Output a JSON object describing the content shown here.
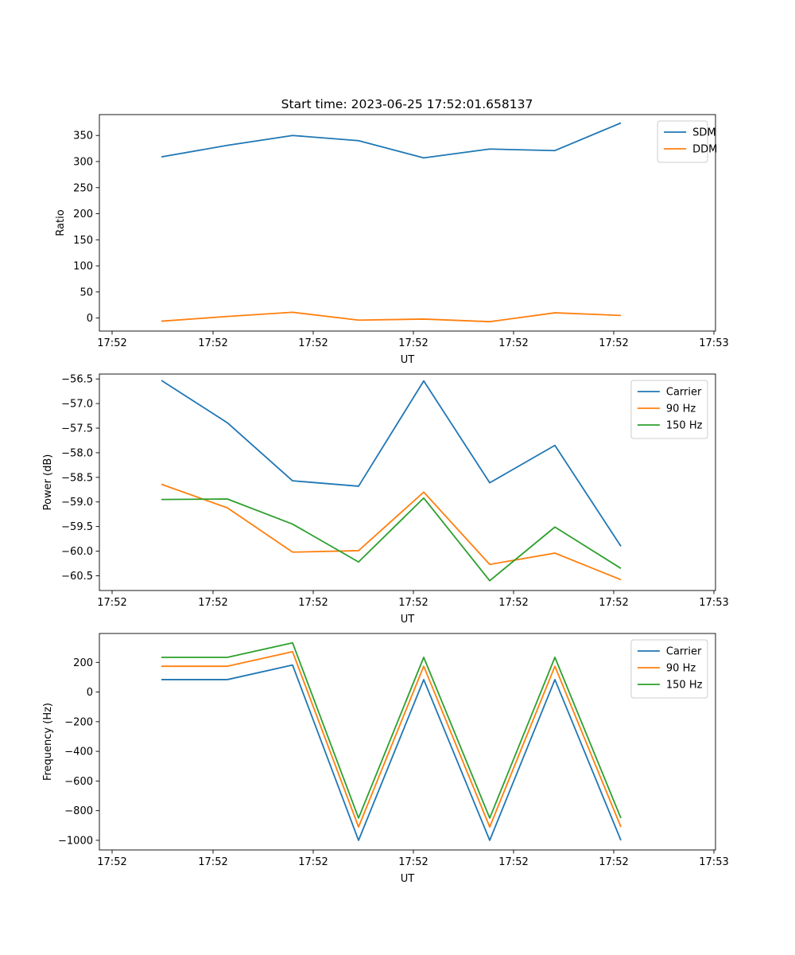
{
  "figure": {
    "title": "Start time: 2023-06-25 17:52:01.658137"
  },
  "colors": {
    "blue": "#1f77b4",
    "orange": "#ff7f0e",
    "green": "#2ca02c"
  },
  "chart_data": [
    {
      "type": "line",
      "title": "Start time: 2023-06-25 17:52:01.658137",
      "xlabel": "UT",
      "ylabel": "Ratio",
      "x_tick_labels": [
        "17:52",
        "17:52",
        "17:52",
        "17:52",
        "17:52",
        "17:52",
        "17:52",
        "17:53"
      ],
      "y_ticks": [
        0,
        50,
        100,
        150,
        200,
        250,
        300,
        350
      ],
      "ylim": [
        -25,
        390
      ],
      "legend": "top-right",
      "series": [
        {
          "name": "SDM",
          "color": "blue",
          "values": [
            309,
            331,
            350,
            340,
            307,
            324,
            321,
            374
          ]
        },
        {
          "name": "DDM",
          "color": "orange",
          "values": [
            -6,
            3,
            11,
            -4,
            -2,
            -7,
            10,
            5
          ]
        }
      ]
    },
    {
      "type": "line",
      "xlabel": "UT",
      "ylabel": "Power (dB)",
      "x_tick_labels": [
        "17:52",
        "17:52",
        "17:52",
        "17:52",
        "17:52",
        "17:52",
        "17:52",
        "17:53"
      ],
      "y_ticks": [
        -56.5,
        -57.0,
        -57.5,
        -58.0,
        -58.5,
        -59.0,
        -59.5,
        -60.0,
        -60.5
      ],
      "y_tick_labels": [
        "−56.5",
        "−57.0",
        "−57.5",
        "−58.0",
        "−58.5",
        "−59.0",
        "−59.5",
        "−60.0",
        "−60.5"
      ],
      "ylim": [
        -60.8,
        -56.4
      ],
      "legend": "top-right",
      "series": [
        {
          "name": "Carrier",
          "color": "blue",
          "values": [
            -56.53,
            -57.39,
            -58.57,
            -58.68,
            -56.54,
            -58.61,
            -57.85,
            -59.9
          ]
        },
        {
          "name": "90 Hz",
          "color": "orange",
          "values": [
            -58.64,
            -59.12,
            -60.02,
            -59.99,
            -58.8,
            -60.27,
            -60.04,
            -60.58
          ]
        },
        {
          "name": "150 Hz",
          "color": "green",
          "values": [
            -58.95,
            -58.94,
            -59.45,
            -60.22,
            -58.92,
            -60.6,
            -59.51,
            -60.35
          ]
        }
      ]
    },
    {
      "type": "line",
      "xlabel": "UT",
      "ylabel": "Frequency (Hz)",
      "x_tick_labels": [
        "17:52",
        "17:52",
        "17:52",
        "17:52",
        "17:52",
        "17:52",
        "17:52",
        "17:53"
      ],
      "y_ticks": [
        200,
        0,
        -200,
        -400,
        -600,
        -800,
        -1000
      ],
      "y_tick_labels": [
        "200",
        "0",
        "−200",
        "−400",
        "−600",
        "−800",
        "−1000"
      ],
      "ylim": [
        -1065,
        395
      ],
      "legend": "top-right",
      "series": [
        {
          "name": "Carrier",
          "color": "blue",
          "values": [
            84,
            84,
            182,
            -1000,
            84,
            -1000,
            84,
            -1000
          ]
        },
        {
          "name": "90 Hz",
          "color": "orange",
          "values": [
            174,
            174,
            272,
            -910,
            174,
            -910,
            174,
            -910
          ]
        },
        {
          "name": "150 Hz",
          "color": "green",
          "values": [
            234,
            234,
            332,
            -850,
            234,
            -850,
            234,
            -850
          ]
        }
      ]
    }
  ]
}
